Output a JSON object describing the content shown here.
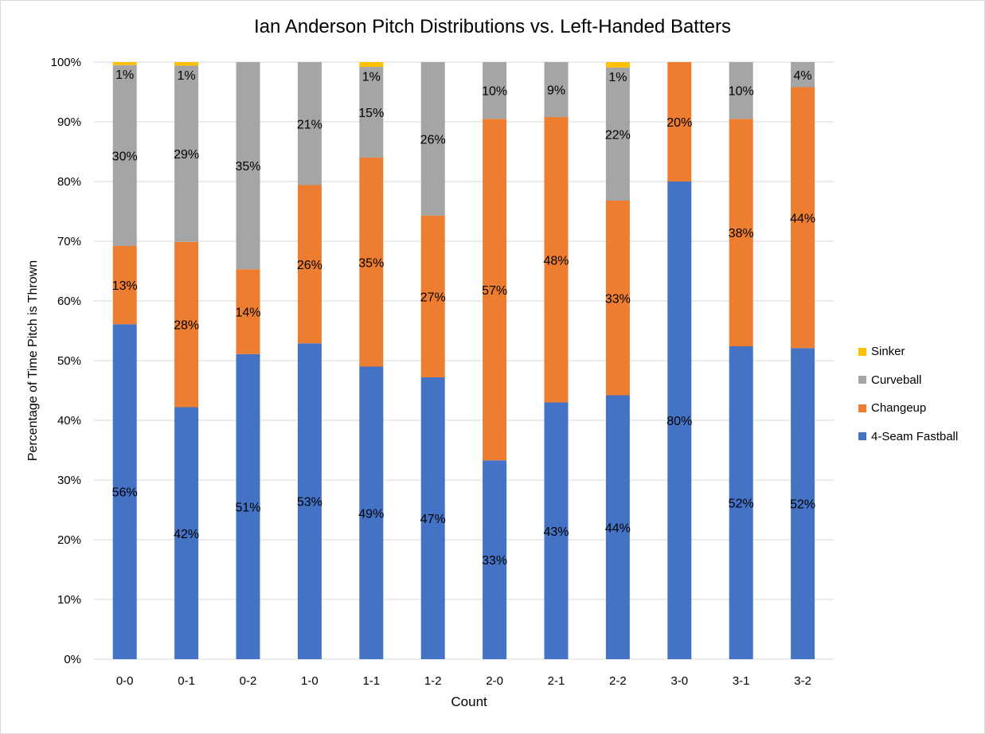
{
  "chart_data": {
    "type": "bar",
    "stacked": true,
    "title": "Ian Anderson Pitch Distributions vs. Left-Handed Batters",
    "xlabel": "Count",
    "ylabel": "Percentage of Time Pitch is Thrown",
    "ylim": [
      0,
      100
    ],
    "y_ticks": [
      "0%",
      "10%",
      "20%",
      "30%",
      "40%",
      "50%",
      "60%",
      "70%",
      "80%",
      "90%",
      "100%"
    ],
    "grid": true,
    "legend_position": "right",
    "categories": [
      "0-0",
      "0-1",
      "0-2",
      "1-0",
      "1-1",
      "1-2",
      "2-0",
      "2-1",
      "2-2",
      "3-0",
      "3-1",
      "3-2"
    ],
    "series": [
      {
        "name": "4-Seam Fastball",
        "color": "#4472c4",
        "values": [
          56.1,
          42.2,
          51.1,
          52.9,
          49.0,
          47.2,
          33.3,
          43.0,
          44.2,
          80.0,
          52.4,
          52.1
        ],
        "labels": [
          "56%",
          "42%",
          "51%",
          "53%",
          "49%",
          "47%",
          "33%",
          "43%",
          "44%",
          "80%",
          "52%",
          "52%"
        ]
      },
      {
        "name": "Changeup",
        "color": "#ed7d31",
        "values": [
          13.1,
          27.7,
          14.2,
          26.5,
          35.0,
          27.1,
          57.2,
          47.8,
          32.6,
          20.0,
          38.1,
          43.7
        ],
        "labels": [
          "13%",
          "28%",
          "14%",
          "26%",
          "35%",
          "27%",
          "57%",
          "48%",
          "33%",
          "20%",
          "38%",
          "44%"
        ]
      },
      {
        "name": "Curveball",
        "color": "#a5a5a5",
        "values": [
          30.3,
          29.5,
          34.7,
          20.6,
          15.2,
          25.7,
          9.5,
          9.2,
          22.3,
          0,
          9.5,
          4.2
        ],
        "labels": [
          "30%",
          "29%",
          "35%",
          "21%",
          "15%",
          "26%",
          "10%",
          "9%",
          "22%",
          "",
          "10%",
          "4%"
        ]
      },
      {
        "name": "Sinker",
        "color": "#ffc000",
        "values": [
          0.5,
          0.6,
          0,
          0,
          0.8,
          0,
          0,
          0,
          0.9,
          0,
          0,
          0
        ],
        "labels": [
          "1%",
          "1%",
          "",
          "",
          "1%",
          "",
          "",
          "",
          "1%",
          "",
          "",
          ""
        ]
      }
    ]
  },
  "legend_order": [
    "Sinker",
    "Curveball",
    "Changeup",
    "4-Seam Fastball"
  ]
}
